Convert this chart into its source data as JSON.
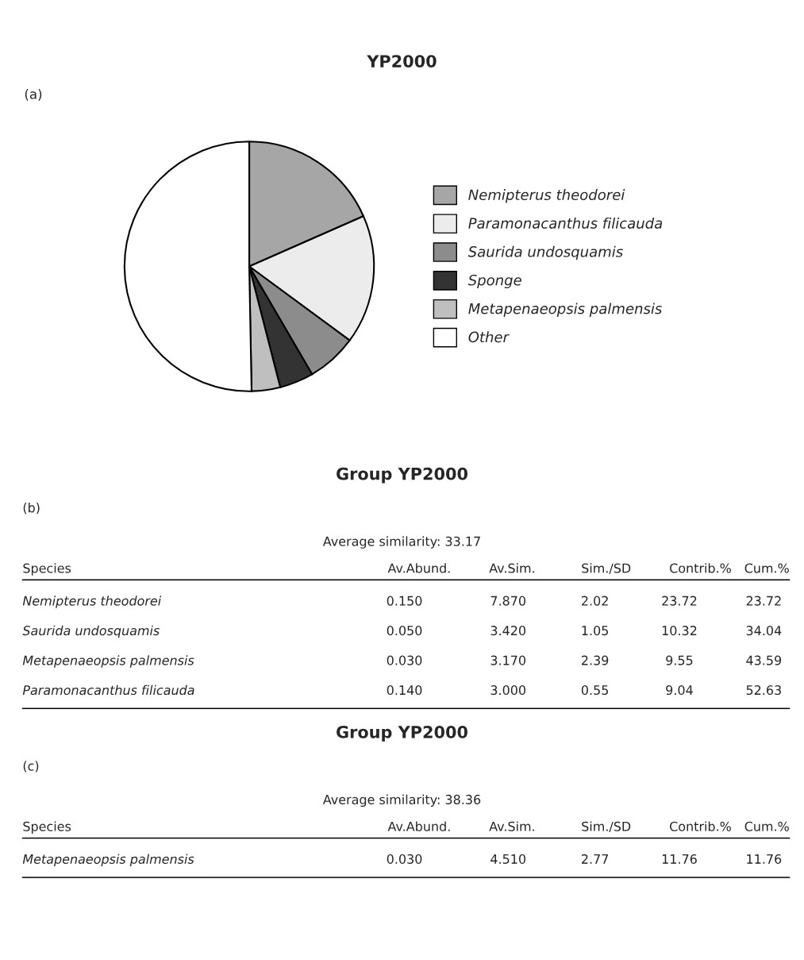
{
  "chart_data": [
    {
      "type": "pie",
      "title": "YP2000",
      "annotations": [
        "(a)"
      ],
      "legend": "right",
      "categories": [
        "Nemipterus theodorei",
        "Paramonacanthus filicauda",
        "Saurida undosquamis",
        "Sponge",
        "Metapenaeopsis palmensis",
        "Other"
      ],
      "values": [
        18.4,
        16.7,
        6.5,
        4.4,
        3.7,
        50.3
      ],
      "colors": [
        "#a6a6a6",
        "#ececec",
        "#8c8c8c",
        "#333333",
        "#bfbfbf",
        "#ffffff"
      ]
    },
    {
      "type": "other",
      "title": "Group YP2000",
      "subtitle": "Average similarity: 33.17",
      "annotations": [
        "(b)"
      ],
      "categories": [
        "Species",
        "Av.Abund.",
        "Av.Sim.",
        "Sim./SD",
        "Contrib.%",
        "Cum.%"
      ],
      "y_categories": [
        "Nemipterus theodorei",
        "Saurida undosquamis",
        "Metapenaeopsis palmensis",
        "Paramonacanthus filicauda"
      ],
      "cell_labels": [
        [
          "0.150",
          "7.870",
          "2.02",
          "23.72",
          "23.72"
        ],
        [
          "0.050",
          "3.420",
          "1.05",
          "10.32",
          "34.04"
        ],
        [
          "0.030",
          "3.170",
          "2.39",
          "9.55",
          "43.59"
        ],
        [
          "0.140",
          "3.000",
          "0.55",
          "9.04",
          "52.63"
        ]
      ]
    },
    {
      "type": "other",
      "title": "Group YP2000",
      "subtitle": "Average similarity: 38.36",
      "annotations": [
        "(c)"
      ],
      "categories": [
        "Species",
        "Av.Abund.",
        "Av.Sim.",
        "Sim./SD",
        "Contrib.%",
        "Cum.%"
      ],
      "y_categories": [
        "Metapenaeopsis palmensis"
      ],
      "cell_labels": [
        [
          "0.030",
          "4.510",
          "2.77",
          "11.76",
          "11.76"
        ]
      ]
    }
  ]
}
